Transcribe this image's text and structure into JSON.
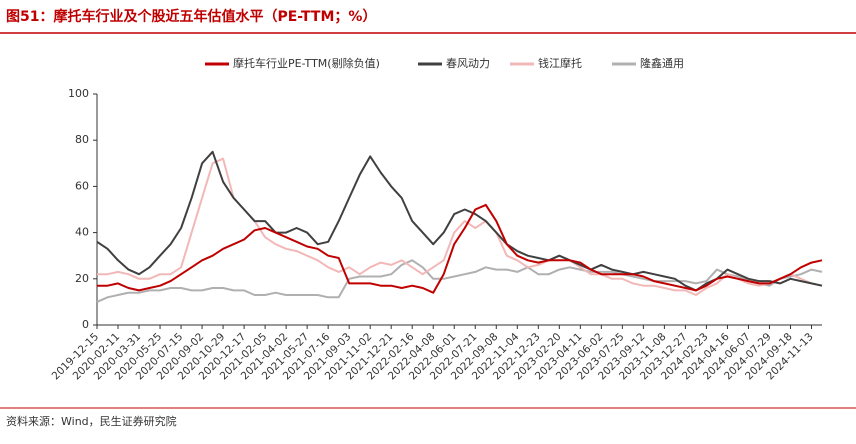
{
  "chart_data": {
    "type": "line",
    "title": "图51：摩托车行业及个股近五年估值水平（PE-TTM；%）",
    "source": "资料来源：Wind，民生证券研究院",
    "categories": [
      "2019-12-15",
      null,
      "2020-02-11",
      null,
      "2020-03-31",
      null,
      "2020-05-25",
      null,
      "2020-07-15",
      null,
      "2020-09-02",
      null,
      "2020-10-29",
      null,
      "2020-12-17",
      null,
      "2021-02-05",
      null,
      "2021-04-02",
      null,
      "2021-05-27",
      null,
      "2021-07-16",
      null,
      "2021-09-03",
      null,
      "2021-11-02",
      null,
      "2021-12-21",
      null,
      "2022-02-16",
      null,
      "2022-04-08",
      null,
      "2022-06-01",
      null,
      "2022-07-21",
      null,
      "2022-09-08",
      null,
      "2022-11-04",
      null,
      "2022-12-23",
      null,
      "2023-02-20",
      null,
      "2023-04-11",
      null,
      "2023-06-02",
      null,
      "2023-07-25",
      null,
      "2023-09-12",
      null,
      "2023-11-08",
      null,
      "2023-12-27",
      null,
      "2024-02-23",
      null,
      "2024-04-16",
      null,
      "2024-06-07",
      null,
      "2024-07-29",
      null,
      "2024-09-18",
      null,
      "2024-11-13",
      null
    ],
    "series": [
      {
        "name": "摩托车行业PE-TTM(剔除负值)",
        "color": "#c00000",
        "values": [
          17,
          17,
          18,
          16,
          15,
          16,
          17,
          19,
          22,
          25,
          28,
          30,
          33,
          35,
          37,
          41,
          42,
          40,
          38,
          36,
          34,
          33,
          30,
          29,
          18,
          18,
          18,
          17,
          17,
          16,
          17,
          16,
          14,
          22,
          35,
          42,
          50,
          52,
          45,
          35,
          30,
          28,
          27,
          28,
          28,
          28,
          27,
          24,
          22,
          22,
          22,
          22,
          21,
          19,
          18,
          17,
          16,
          15,
          17,
          20,
          21,
          20,
          19,
          18,
          18,
          20,
          22,
          25,
          27,
          28
        ]
      },
      {
        "name": "春风动力",
        "color": "#404040",
        "values": [
          36,
          33,
          28,
          24,
          22,
          25,
          30,
          35,
          42,
          55,
          70,
          75,
          62,
          55,
          50,
          45,
          45,
          40,
          40,
          42,
          40,
          35,
          36,
          45,
          55,
          65,
          73,
          66,
          60,
          55,
          45,
          40,
          35,
          40,
          48,
          50,
          48,
          45,
          40,
          35,
          32,
          30,
          29,
          28,
          30,
          28,
          26,
          24,
          26,
          24,
          23,
          22,
          23,
          22,
          21,
          20,
          17,
          15,
          18,
          20,
          24,
          22,
          20,
          19,
          19,
          18,
          20,
          19,
          18,
          17
        ]
      },
      {
        "name": "钱江摩托",
        "color": "#f2b8b8",
        "values": [
          22,
          22,
          23,
          22,
          20,
          20,
          22,
          22,
          25,
          40,
          55,
          70,
          72,
          55,
          50,
          45,
          38,
          35,
          33,
          32,
          30,
          28,
          25,
          23,
          25,
          22,
          25,
          27,
          26,
          28,
          25,
          22,
          25,
          28,
          40,
          45,
          42,
          45,
          40,
          30,
          28,
          25,
          26,
          28,
          30,
          28,
          25,
          22,
          22,
          20,
          20,
          18,
          17,
          17,
          16,
          15,
          15,
          13,
          16,
          18,
          22,
          20,
          18,
          17,
          18,
          20,
          22,
          20,
          18,
          17
        ]
      },
      {
        "name": "隆鑫通用",
        "color": "#b0b0b0",
        "values": [
          10,
          12,
          13,
          14,
          14,
          15,
          15,
          16,
          16,
          15,
          15,
          16,
          16,
          15,
          15,
          13,
          13,
          14,
          13,
          13,
          13,
          13,
          12,
          12,
          20,
          21,
          21,
          21,
          22,
          26,
          28,
          25,
          20,
          20,
          21,
          22,
          23,
          25,
          24,
          24,
          23,
          25,
          22,
          22,
          24,
          25,
          24,
          23,
          23,
          23,
          22,
          21,
          20,
          19,
          19,
          19,
          19,
          18,
          19,
          24,
          22,
          21,
          19,
          18,
          17,
          20,
          21,
          22,
          24,
          23
        ]
      }
    ],
    "ylim": [
      0,
      100
    ],
    "yticks": [
      0,
      20,
      40,
      60,
      80,
      100
    ],
    "grid": false,
    "legend": "top"
  }
}
